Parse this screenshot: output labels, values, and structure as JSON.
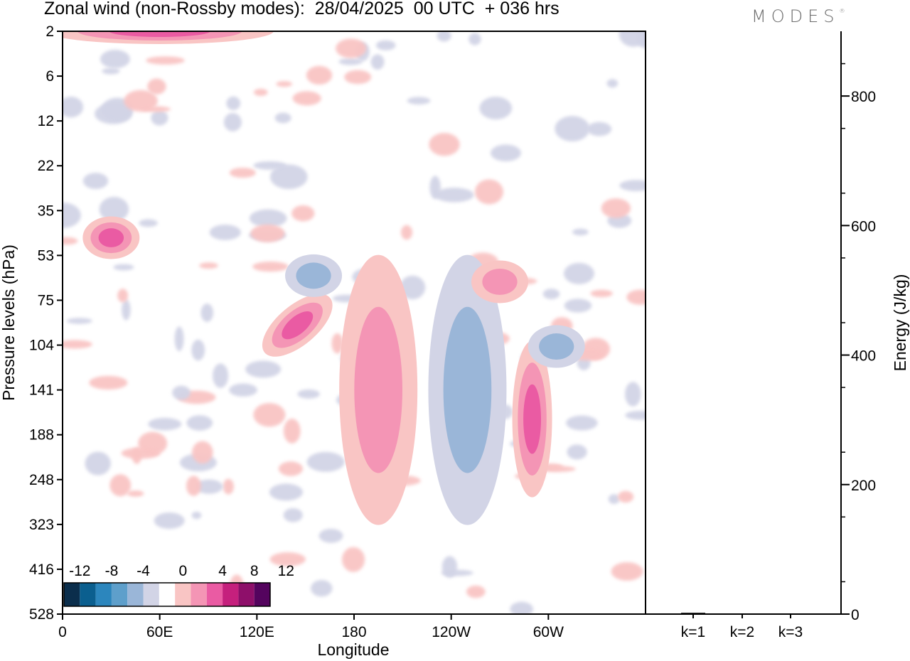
{
  "header": {
    "title": "Zonal wind (non-Rossby modes):  28/04/2025  00 UTC  + 036 hrs",
    "logo": "MODES",
    "logo_mark": "®"
  },
  "chart_data": [
    {
      "type": "heatmap",
      "xlabel": "Longitude",
      "ylabel": "Pressure levels (hPa)",
      "x_ticks": [
        "0",
        "60E",
        "120E",
        "180",
        "120W",
        "60W"
      ],
      "y_ticks": [
        "2",
        "6",
        "12",
        "22",
        "35",
        "53",
        "75",
        "104",
        "141",
        "188",
        "248",
        "323",
        "416",
        "528"
      ],
      "colorbar": {
        "labels": [
          "-12",
          "-8",
          "-4",
          "0",
          "4",
          "8",
          "12"
        ],
        "levels": [
          -14,
          -12,
          -10,
          -8,
          -6,
          -4,
          -2,
          2,
          4,
          6,
          8,
          10,
          12,
          14
        ],
        "colors": [
          "#0b2e4c",
          "#0b5f8f",
          "#2c86bd",
          "#5e9fcb",
          "#9ab6d8",
          "#d2d4e6",
          "#ffffff",
          "#f9c5c4",
          "#f495b5",
          "#ea5ba3",
          "#c5207d",
          "#8e0f6a",
          "#54045e"
        ]
      },
      "features": [
        {
          "lon": 195,
          "lev": 141,
          "value": 6,
          "extent": "deep jet core"
        },
        {
          "lon": 250,
          "lev": 141,
          "value": -6,
          "extent": "deep trough"
        },
        {
          "lon": 290,
          "lev": 170,
          "value": 7,
          "extent": "narrow"
        },
        {
          "lon": 145,
          "lev": 90,
          "value": 7,
          "extent": "tilted"
        },
        {
          "lon": 30,
          "lev": 45,
          "value": 7,
          "extent": "small"
        },
        {
          "lon": 155,
          "lev": 62,
          "value": -5,
          "extent": "small"
        },
        {
          "lon": 305,
          "lev": 105,
          "value": -5,
          "extent": "small"
        },
        {
          "lon": 60,
          "lev": 2,
          "value": 8,
          "extent": "strip"
        },
        {
          "lon": 270,
          "lev": 65,
          "value": 6,
          "extent": "small"
        }
      ]
    },
    {
      "type": "bar",
      "categories": [
        "k=1",
        "k=2",
        "k=3"
      ],
      "values": [
        2,
        1,
        1
      ],
      "ylabel": "Energy (J/kg)",
      "y_ticks": [
        "0",
        "200",
        "400",
        "600",
        "800"
      ],
      "ylim": [
        0,
        900
      ]
    }
  ]
}
